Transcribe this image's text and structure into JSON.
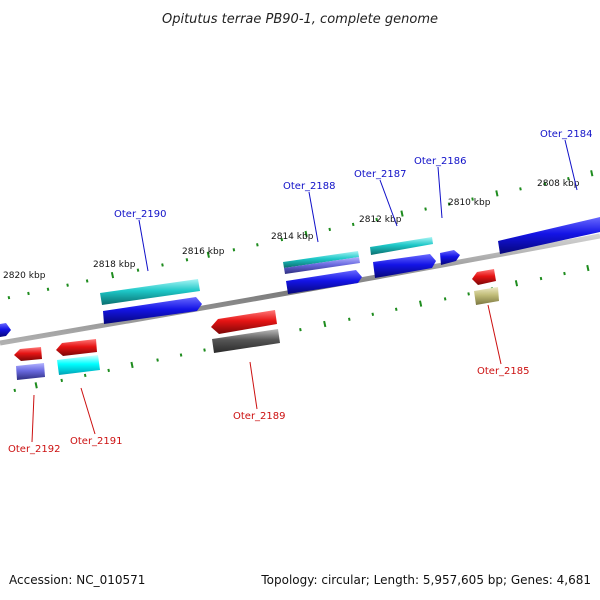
{
  "title": "Opitutus terrae PB90-1, complete genome",
  "footer": {
    "accession": "Accession: NC_010571",
    "summary": "Topology: circular; Length: 5,957,605 bp; Genes: 4,681"
  },
  "colors": {
    "forward_label": "#1010c8",
    "reverse_label": "#cc1010",
    "backbone": "#888888",
    "tick": "#1e8c1e",
    "cds_blue": "#1414e6",
    "cds_red": "#e61414",
    "cyan": "#1ec8c8",
    "aqua": "#00ffff",
    "slate": "#6a6ae0",
    "grey": "#555555",
    "khaki": "#c0bc78"
  },
  "scale_labels": [
    "2808 kbp",
    "2810 kbp",
    "2812 kbp",
    "2814 kbp",
    "2816 kbp",
    "2818 kbp",
    "2820 kbp"
  ],
  "genes": [
    {
      "label": "Oter_2184",
      "strand": "forward"
    },
    {
      "label": "Oter_2186",
      "strand": "forward"
    },
    {
      "label": "Oter_2187",
      "strand": "forward"
    },
    {
      "label": "Oter_2188",
      "strand": "forward"
    },
    {
      "label": "Oter_2190",
      "strand": "forward"
    },
    {
      "label": "Oter_2185",
      "strand": "reverse"
    },
    {
      "label": "Oter_2189",
      "strand": "reverse"
    },
    {
      "label": "Oter_2191",
      "strand": "reverse"
    },
    {
      "label": "Oter_2192",
      "strand": "reverse"
    }
  ]
}
